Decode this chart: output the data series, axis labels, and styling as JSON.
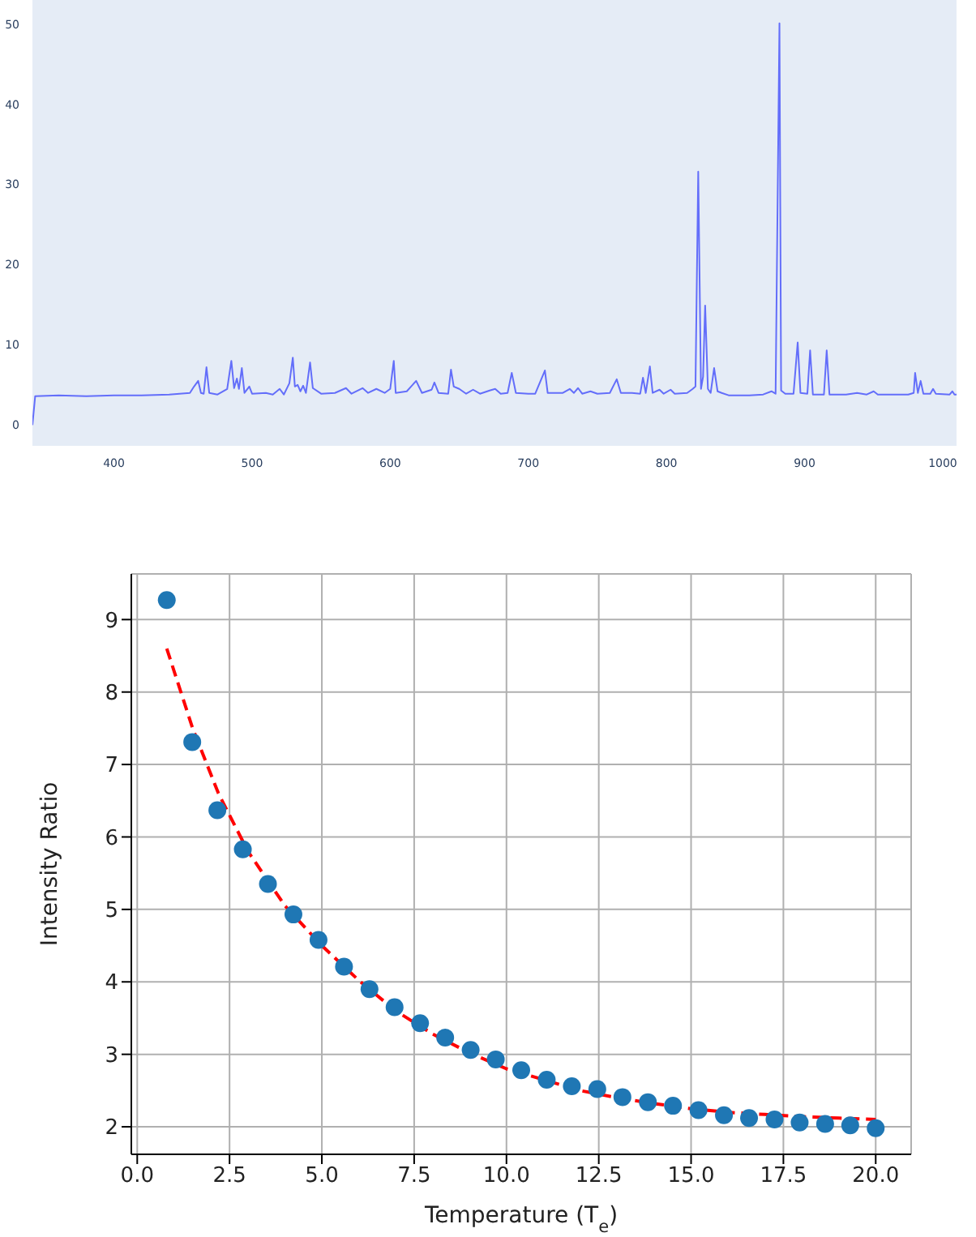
{
  "chart_data": [
    {
      "type": "line",
      "color": "#636efa",
      "x": [
        341,
        343,
        360,
        380,
        400,
        420,
        440,
        455,
        458,
        461,
        463,
        465,
        467,
        469,
        475,
        482,
        485,
        487,
        489,
        490.5,
        492.6,
        494.5,
        498,
        500,
        510,
        515,
        520,
        523,
        527,
        529.5,
        531,
        533,
        535,
        537,
        539,
        542,
        544,
        550,
        560,
        568,
        572,
        580,
        584,
        590,
        596,
        600,
        602.6,
        604,
        612,
        618.8,
        623,
        630,
        632,
        635,
        642,
        644,
        646,
        650,
        655,
        660,
        665,
        672,
        676,
        680,
        685,
        688,
        691,
        700,
        705,
        712,
        714,
        725,
        730,
        733,
        736,
        739,
        745,
        750,
        759,
        764,
        767,
        775,
        781,
        783,
        785,
        788,
        790,
        795,
        798,
        803,
        806,
        815,
        819,
        821,
        823,
        825,
        826.5,
        828,
        830,
        832,
        834.5,
        837,
        840,
        845,
        860,
        870,
        876,
        879,
        881.8,
        883,
        886,
        892,
        895,
        897,
        902,
        904,
        906,
        914,
        916,
        918,
        930,
        938,
        945,
        950,
        953,
        965,
        975,
        979,
        980,
        982,
        984,
        986,
        991,
        993,
        995,
        1005,
        1007,
        1008.5,
        1010
      ],
      "values": [
        0,
        3.6,
        3.7,
        3.6,
        3.7,
        3.7,
        3.8,
        4.0,
        4.8,
        5.5,
        4.0,
        3.9,
        7.2,
        4.0,
        3.8,
        4.5,
        8.0,
        4.6,
        5.8,
        4.5,
        7.1,
        4.0,
        4.8,
        3.9,
        4.0,
        3.8,
        4.5,
        3.8,
        5.2,
        8.4,
        4.8,
        5.0,
        4.2,
        4.9,
        4.0,
        7.8,
        4.6,
        3.9,
        4.0,
        4.6,
        3.9,
        4.6,
        4.0,
        4.5,
        4.0,
        4.5,
        8.0,
        4.0,
        4.2,
        5.5,
        4.0,
        4.4,
        5.3,
        4.0,
        3.9,
        6.9,
        4.8,
        4.5,
        3.9,
        4.4,
        3.9,
        4.3,
        4.5,
        3.9,
        4.0,
        6.5,
        4.0,
        3.9,
        3.9,
        6.8,
        4.0,
        4.0,
        4.5,
        4.0,
        4.6,
        3.9,
        4.2,
        3.9,
        4.0,
        5.7,
        4.0,
        4.0,
        3.9,
        5.9,
        4.0,
        7.3,
        4.0,
        4.4,
        3.9,
        4.4,
        3.9,
        4.0,
        4.5,
        4.8,
        31.6,
        4.5,
        6.0,
        14.9,
        4.5,
        4.0,
        7.1,
        4.2,
        4.0,
        3.7,
        3.7,
        3.8,
        4.2,
        3.9,
        50.1,
        4.3,
        3.9,
        3.9,
        10.3,
        4.0,
        3.9,
        9.3,
        3.8,
        3.8,
        9.3,
        3.8,
        3.8,
        4.0,
        3.8,
        4.2,
        3.8,
        3.8,
        3.8,
        4.0,
        6.5,
        4.0,
        5.5,
        3.9,
        3.9,
        4.5,
        3.9,
        3.8,
        4.2,
        3.8,
        3.8
      ],
      "xlim": [
        341,
        1010
      ],
      "ylim": [
        -2.6,
        53
      ],
      "xticks": [
        400,
        500,
        600,
        700,
        800,
        900,
        1000
      ],
      "yticks": [
        0,
        10,
        20,
        30,
        40,
        50
      ],
      "grid": true
    },
    {
      "type": "scatter",
      "xlabel": "Temperature (T$_{e}$)",
      "ylabel": "Intensity Ratio",
      "series": [
        {
          "type": "scatter",
          "color": "#1f77b4",
          "marker": "circle",
          "x": [
            0.8,
            1.49,
            2.17,
            2.86,
            3.54,
            4.23,
            4.91,
            5.6,
            6.29,
            6.97,
            7.66,
            8.34,
            9.03,
            9.71,
            10.4,
            11.09,
            11.77,
            12.46,
            13.14,
            13.83,
            14.51,
            15.2,
            15.89,
            16.57,
            17.26,
            17.94,
            18.63,
            19.31,
            20.0
          ],
          "values": [
            9.27,
            7.31,
            6.37,
            5.83,
            5.35,
            4.93,
            4.58,
            4.21,
            3.9,
            3.65,
            3.43,
            3.23,
            3.06,
            2.93,
            2.78,
            2.65,
            2.56,
            2.52,
            2.41,
            2.34,
            2.29,
            2.23,
            2.16,
            2.12,
            2.1,
            2.06,
            2.04,
            2.02,
            1.98
          ]
        },
        {
          "type": "line",
          "color": "#ff0000",
          "line_style": "dashed",
          "marker": "none",
          "x": [
            0.8,
            1.5,
            2.2,
            3,
            4,
            5,
            6,
            7,
            8,
            9,
            10,
            11,
            12,
            13,
            14,
            15,
            16,
            17,
            18,
            19,
            20
          ],
          "values": [
            8.6,
            7.5,
            6.6,
            5.8,
            5.05,
            4.5,
            4.02,
            3.6,
            3.28,
            3.02,
            2.8,
            2.65,
            2.5,
            2.4,
            2.32,
            2.25,
            2.2,
            2.17,
            2.14,
            2.12,
            2.1
          ]
        }
      ],
      "xlim": [
        -0.16,
        20.96
      ],
      "ylim": [
        1.62,
        9.63
      ],
      "xticks": [
        {
          "value": 0,
          "label": "0.0"
        },
        2.5,
        {
          "value": 5,
          "label": "5.0"
        },
        7.5,
        {
          "value": 10,
          "label": "10.0"
        },
        12.5,
        {
          "value": 15,
          "label": "15.0"
        },
        17.5,
        {
          "value": 20,
          "label": "20.0"
        }
      ],
      "yticks": [
        2,
        3,
        4,
        5,
        6,
        7,
        8,
        9
      ],
      "grid": true
    }
  ]
}
